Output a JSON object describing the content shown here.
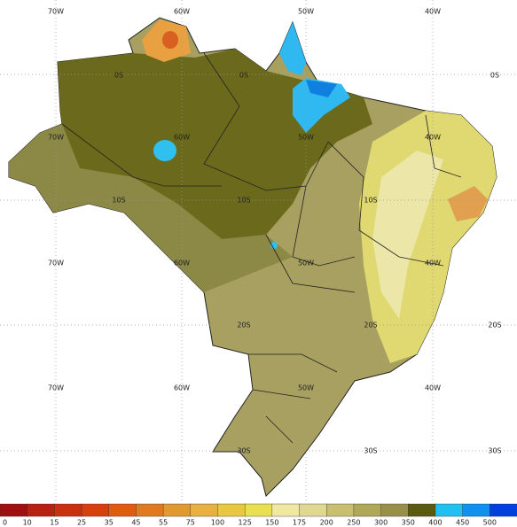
{
  "map": {
    "grid_labels": [
      "70W",
      "60W",
      "50W",
      "40W",
      "0S",
      "0S",
      "0S",
      "70W",
      "60W",
      "50W",
      "40W",
      "10S",
      "10S",
      "10S",
      "70W",
      "60W",
      "50W",
      "40W",
      "20S",
      "20S",
      "20S",
      "70W",
      "60W",
      "50W",
      "40W",
      "30S",
      "30S",
      "30S"
    ]
  },
  "colorbar": {
    "labels": [
      0,
      10,
      15,
      25,
      35,
      45,
      55,
      75,
      100,
      125,
      150,
      175,
      200,
      250,
      300,
      350,
      400,
      450,
      500
    ],
    "colors": [
      "#a01010",
      "#b82010",
      "#c83010",
      "#d84010",
      "#e05a10",
      "#e07a20",
      "#e09a30",
      "#e8b040",
      "#e8c840",
      "#e8e050",
      "#f0e8a0",
      "#e0d890",
      "#c8c070",
      "#b0a858",
      "#989048",
      "#5a5a10",
      "#20c0f0",
      "#1090f0",
      "#0040e0"
    ]
  }
}
